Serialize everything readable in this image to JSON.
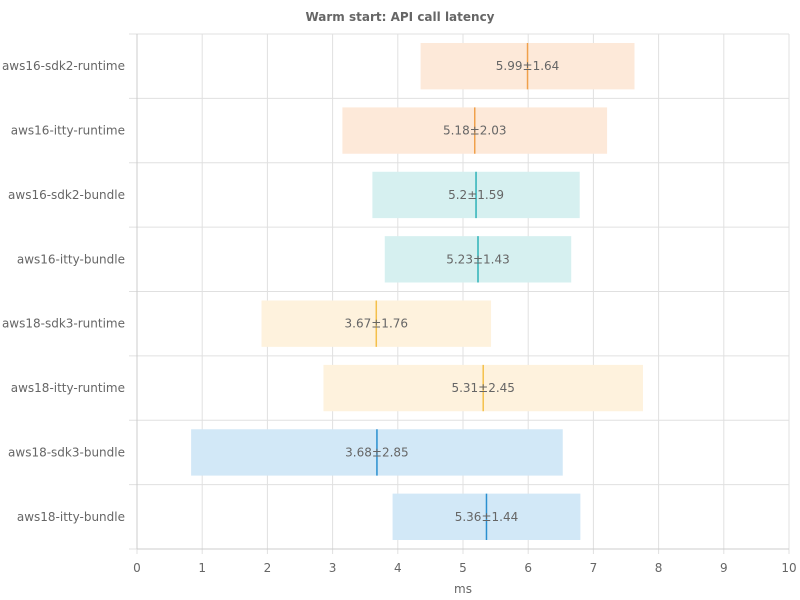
{
  "chart_data": {
    "type": "bar",
    "orientation": "horizontal",
    "title": "Warm start: API call latency",
    "xlabel": "ms",
    "ylabel": "",
    "xlim": [
      0,
      10
    ],
    "xticks": [
      0,
      1,
      2,
      3,
      4,
      5,
      6,
      7,
      8,
      9,
      10
    ],
    "grid": true,
    "legend": "none",
    "categories": [
      "aws16-sdk2-runtime",
      "aws16-itty-runtime",
      "aws16-sdk2-bundle",
      "aws16-itty-bundle",
      "aws18-sdk3-runtime",
      "aws18-itty-runtime",
      "aws18-sdk3-bundle",
      "aws18-itty-bundle"
    ],
    "series": [
      {
        "mean": [
          5.99,
          5.18,
          5.2,
          5.23,
          3.67,
          5.31,
          3.68,
          5.36
        ],
        "stddev": [
          1.64,
          2.03,
          1.59,
          1.43,
          1.76,
          2.45,
          2.85,
          1.44
        ],
        "labels": [
          "5.99±1.64",
          "5.18±2.03",
          "5.2±1.59",
          "5.23±1.43",
          "3.67±1.76",
          "5.31±2.45",
          "3.68±2.85",
          "5.36±1.44"
        ]
      }
    ],
    "colors": {
      "fills": [
        "#fde9d9",
        "#fde9d9",
        "#d6f0f0",
        "#d6f0f0",
        "#fef2dd",
        "#fef2dd",
        "#d2e8f7",
        "#d2e8f7"
      ],
      "lines": [
        "#f0a04b",
        "#f0a04b",
        "#2eb2b8",
        "#2eb2b8",
        "#f4c04a",
        "#f4c04a",
        "#2a8fd0",
        "#2a8fd0"
      ],
      "grid": "#e0e0e0",
      "text": "#666666"
    }
  }
}
